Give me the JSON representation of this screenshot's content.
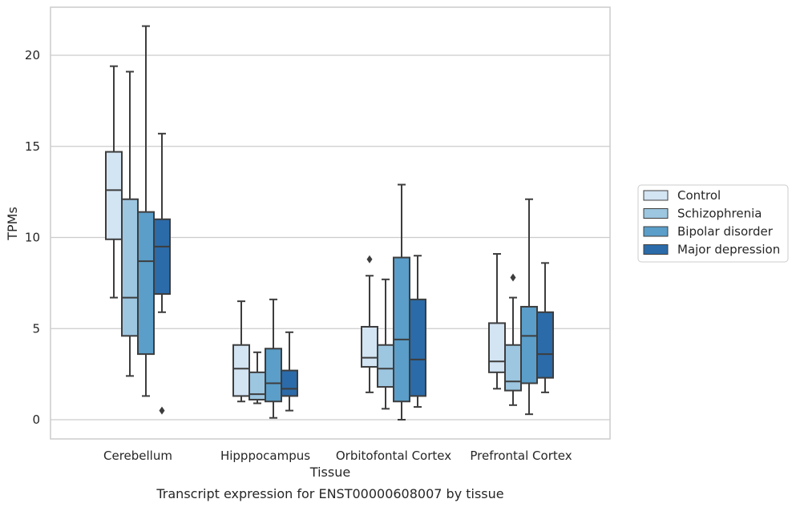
{
  "chart_data": {
    "type": "box",
    "caption": "Transcript expression for ENST00000608007 by tissue",
    "xlabel": "Tissue",
    "ylabel": "TPMs",
    "ylim": [
      -1,
      22.5
    ],
    "yticks": [
      0,
      5,
      10,
      15,
      20
    ],
    "grid": true,
    "legend_position": "outside-right",
    "categories": [
      "Cerebellum",
      "Hipppocampus",
      "Orbitofontal Cortex",
      "Prefrontal Cortex"
    ],
    "series": [
      {
        "name": "Control",
        "color": "#d3e4f3",
        "boxes": [
          {
            "whisker_low": 6.7,
            "q1": 9.9,
            "median": 12.6,
            "q3": 14.7,
            "whisker_high": 19.4,
            "outliers": []
          },
          {
            "whisker_low": 1.0,
            "q1": 1.3,
            "median": 2.8,
            "q3": 4.1,
            "whisker_high": 6.5,
            "outliers": []
          },
          {
            "whisker_low": 1.5,
            "q1": 2.9,
            "median": 3.4,
            "q3": 5.1,
            "whisker_high": 7.9,
            "outliers": [
              8.8
            ]
          },
          {
            "whisker_low": 1.7,
            "q1": 2.6,
            "median": 3.2,
            "q3": 5.3,
            "whisker_high": 9.1,
            "outliers": []
          }
        ]
      },
      {
        "name": "Schizophrenia",
        "color": "#9dc6e0",
        "boxes": [
          {
            "whisker_low": 2.4,
            "q1": 4.6,
            "median": 6.7,
            "q3": 12.1,
            "whisker_high": 19.1,
            "outliers": []
          },
          {
            "whisker_low": 0.9,
            "q1": 1.1,
            "median": 1.4,
            "q3": 2.6,
            "whisker_high": 3.7,
            "outliers": []
          },
          {
            "whisker_low": 0.6,
            "q1": 1.8,
            "median": 2.8,
            "q3": 4.1,
            "whisker_high": 7.7,
            "outliers": []
          },
          {
            "whisker_low": 0.8,
            "q1": 1.6,
            "median": 2.1,
            "q3": 4.1,
            "whisker_high": 6.7,
            "outliers": [
              7.8
            ]
          }
        ]
      },
      {
        "name": "Bipolar disorder",
        "color": "#5a9ec9",
        "boxes": [
          {
            "whisker_low": 1.3,
            "q1": 3.6,
            "median": 8.7,
            "q3": 11.4,
            "whisker_high": 21.6,
            "outliers": []
          },
          {
            "whisker_low": 0.1,
            "q1": 1.0,
            "median": 2.0,
            "q3": 3.9,
            "whisker_high": 6.6,
            "outliers": []
          },
          {
            "whisker_low": 0.0,
            "q1": 1.0,
            "median": 4.4,
            "q3": 8.9,
            "whisker_high": 12.9,
            "outliers": []
          },
          {
            "whisker_low": 0.3,
            "q1": 2.0,
            "median": 4.6,
            "q3": 6.2,
            "whisker_high": 12.1,
            "outliers": []
          }
        ]
      },
      {
        "name": "Major depression",
        "color": "#2b6ba9",
        "boxes": [
          {
            "whisker_low": 5.9,
            "q1": 6.9,
            "median": 9.5,
            "q3": 11.0,
            "whisker_high": 15.7,
            "outliers": [
              0.5
            ]
          },
          {
            "whisker_low": 0.5,
            "q1": 1.3,
            "median": 1.7,
            "q3": 2.7,
            "whisker_high": 4.8,
            "outliers": []
          },
          {
            "whisker_low": 0.7,
            "q1": 1.3,
            "median": 3.3,
            "q3": 6.6,
            "whisker_high": 9.0,
            "outliers": []
          },
          {
            "whisker_low": 1.5,
            "q1": 2.3,
            "median": 3.6,
            "q3": 5.9,
            "whisker_high": 8.6,
            "outliers": []
          }
        ]
      }
    ]
  }
}
